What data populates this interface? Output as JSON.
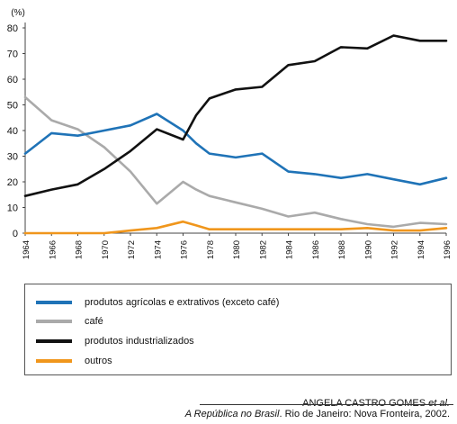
{
  "chart_data": {
    "type": "line",
    "ylabel": "(%)",
    "ylim": [
      0,
      80
    ],
    "yticks": [
      0,
      10,
      20,
      30,
      40,
      50,
      60,
      70,
      80
    ],
    "x": [
      "1964",
      "1966",
      "1968",
      "1970",
      "1972",
      "1974",
      "1976",
      "1977",
      "1978",
      "1980",
      "1982",
      "1984",
      "1986",
      "1988",
      "1990",
      "1992",
      "1994",
      "1996"
    ],
    "xticks": [
      "1964",
      "1966",
      "1968",
      "1970",
      "1972",
      "1974",
      "1976",
      "1978",
      "1980",
      "1982",
      "1984",
      "1986",
      "1988",
      "1990",
      "1992",
      "1994",
      "1996"
    ],
    "series": [
      {
        "name": "produtos agrícolas e extrativos (exceto café)",
        "color": "#1f73b7",
        "values": [
          31,
          39,
          38,
          40,
          42,
          46.5,
          40,
          35,
          31,
          29.5,
          31,
          24,
          23,
          21.5,
          23,
          21,
          19,
          21.5
        ]
      },
      {
        "name": "café",
        "color": "#aaaaaa",
        "values": [
          53,
          44,
          40.5,
          33.5,
          24,
          11.5,
          20,
          17,
          14.5,
          12,
          9.5,
          6.5,
          8,
          5.5,
          3.5,
          2.5,
          4,
          3.5
        ]
      },
      {
        "name": "produtos industrializados",
        "color": "#111111",
        "values": [
          14.5,
          17,
          19,
          25,
          32,
          40.5,
          36.5,
          46,
          52.5,
          56,
          57,
          65.5,
          67,
          72.5,
          72,
          77,
          75,
          75
        ]
      },
      {
        "name": "outros",
        "color": "#f0961c",
        "values": [
          0,
          0,
          0,
          0,
          1,
          2,
          4.5,
          3,
          1.5,
          1.5,
          1.5,
          1.5,
          1.5,
          1.5,
          2,
          1,
          1,
          2
        ]
      }
    ]
  },
  "legend": {
    "items": [
      {
        "label": "produtos agrícolas e extrativos (exceto café)",
        "color": "#1f73b7"
      },
      {
        "label": "café",
        "color": "#aaaaaa"
      },
      {
        "label": "produtos industrializados",
        "color": "#111111"
      },
      {
        "label": "outros",
        "color": "#f0961c"
      }
    ]
  },
  "source": {
    "author": "ANGELA CASTRO GOMES et al.",
    "book": "A República no Brasil",
    "rest": ". Rio de Janeiro: Nova Fronteira, 2002."
  }
}
